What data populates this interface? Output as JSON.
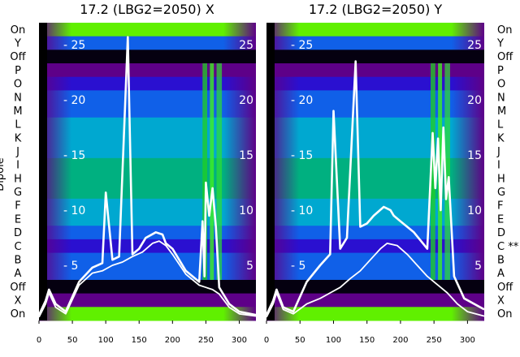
{
  "chart_data": [
    {
      "type": "heatmap",
      "title": "17.2 (LBG2=2050) X",
      "ylabel": "Dipole",
      "row_labels": [
        "On",
        "Y",
        "Off",
        "P",
        "O",
        "N",
        "M",
        "L",
        "K",
        "J",
        "I",
        "H",
        "G",
        "F",
        "E",
        "D",
        "C",
        "B",
        "A",
        "Off",
        "X",
        "On"
      ],
      "right_y_ticks": [
        5,
        10,
        15,
        20,
        25
      ],
      "xticks": [
        0,
        50,
        100,
        150,
        200,
        250,
        300
      ],
      "xlim": [
        0,
        325
      ],
      "ylim": [
        0,
        27
      ],
      "grid": false,
      "series": [
        {
          "x": [
            0,
            10,
            15,
            25,
            40,
            60,
            80,
            95,
            100,
            110,
            120,
            133,
            140,
            150,
            160,
            175,
            185,
            190,
            200,
            220,
            240,
            245,
            248,
            250,
            255,
            260,
            265,
            270,
            275,
            285,
            300,
            325
          ],
          "y": [
            0.5,
            1.8,
            2.8,
            1.5,
            0.8,
            3.5,
            4.8,
            5.2,
            11.6,
            5.5,
            5.8,
            25.7,
            6.0,
            6.5,
            7.5,
            8.0,
            7.8,
            7.0,
            6.5,
            4.5,
            3.5,
            9.0,
            4.0,
            12.5,
            9.5,
            12.0,
            8.5,
            3.0,
            2.5,
            1.5,
            0.8,
            0.5
          ]
        },
        {
          "x": [
            0,
            10,
            15,
            25,
            40,
            60,
            80,
            95,
            110,
            125,
            140,
            155,
            170,
            180,
            190,
            200,
            220,
            240,
            250,
            260,
            270,
            285,
            300,
            325
          ],
          "y": [
            0.3,
            1.5,
            2.5,
            1.2,
            0.6,
            3.2,
            4.3,
            4.5,
            5.0,
            5.3,
            5.8,
            6.2,
            7.0,
            7.2,
            6.8,
            6.0,
            4.2,
            3.2,
            3.0,
            2.8,
            2.4,
            1.2,
            0.6,
            0.4
          ]
        }
      ],
      "cmap_stops": [
        "#050010",
        "#5e0088",
        "#2a10d0",
        "#1060e8",
        "#00a8d0",
        "#00b080",
        "#10c030",
        "#60f000"
      ]
    },
    {
      "type": "heatmap",
      "title": "17.2 (LBG2=2050) Y",
      "row_labels": [
        "On",
        "Y",
        "Off",
        "P",
        "O",
        "N",
        "M",
        "L",
        "K",
        "J",
        "I",
        "H",
        "G",
        "F",
        "E",
        "D",
        "C **",
        "B",
        "A",
        "Off",
        "X",
        "On"
      ],
      "right_y_ticks": [
        5,
        10,
        15,
        20,
        25
      ],
      "xticks": [
        0,
        50,
        100,
        150,
        200,
        250,
        300
      ],
      "xlim": [
        0,
        325
      ],
      "ylim": [
        0,
        27
      ],
      "grid": false,
      "series": [
        {
          "x": [
            0,
            10,
            15,
            25,
            40,
            60,
            80,
            95,
            100,
            110,
            120,
            133,
            140,
            150,
            160,
            175,
            185,
            190,
            200,
            220,
            240,
            248,
            252,
            256,
            260,
            264,
            268,
            272,
            280,
            295,
            325
          ],
          "y": [
            0.5,
            1.8,
            2.8,
            1.2,
            0.8,
            3.5,
            5.0,
            6.0,
            19.0,
            6.5,
            7.5,
            23.5,
            8.5,
            8.8,
            9.5,
            10.3,
            10.0,
            9.5,
            9.0,
            8.0,
            6.5,
            17.0,
            12.0,
            16.5,
            10.0,
            17.5,
            11.0,
            13.0,
            4.0,
            2.0,
            1.0
          ]
        },
        {
          "x": [
            0,
            10,
            15,
            25,
            40,
            60,
            80,
            95,
            110,
            125,
            140,
            155,
            170,
            180,
            195,
            210,
            225,
            240,
            250,
            260,
            270,
            285,
            300,
            325
          ],
          "y": [
            0.3,
            1.5,
            2.5,
            1.0,
            0.6,
            1.5,
            2.0,
            2.5,
            3.0,
            3.8,
            4.5,
            5.5,
            6.5,
            7.0,
            6.8,
            6.0,
            5.0,
            4.0,
            3.5,
            3.0,
            2.5,
            1.5,
            0.8,
            0.4
          ]
        }
      ],
      "cmap_stops": [
        "#050010",
        "#5e0088",
        "#2a10d0",
        "#1060e8",
        "#00a8d0",
        "#00b080",
        "#10c030",
        "#60f000"
      ]
    }
  ]
}
